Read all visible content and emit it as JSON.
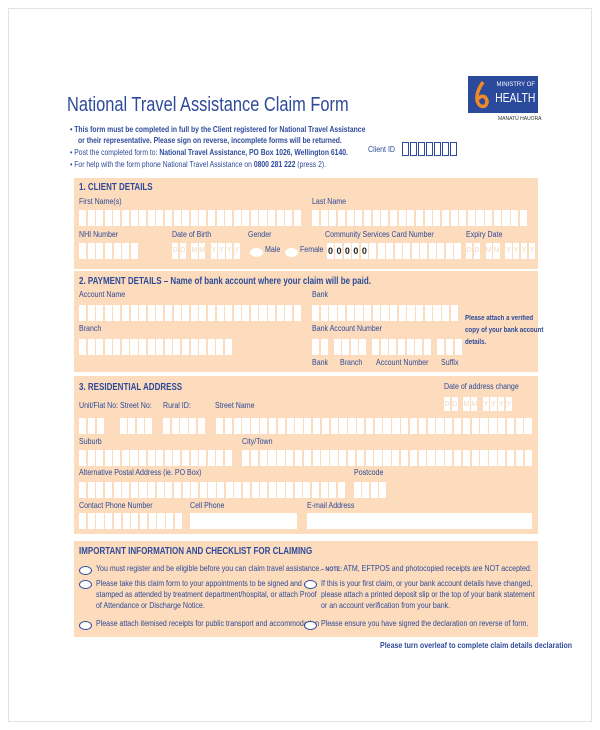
{
  "header": {
    "title": "National Travel Assistance Claim Form",
    "bullets": [
      "This form must be completed in full by the Client registered for National Travel Assistance",
      "or their representative. Please sign on reverse, incomplete forms will be returned."
    ],
    "post_prefix": "Post the completed form to: ",
    "post_address": "National Travel Assistance, PO Box 1026, Wellington 6140.",
    "help_prefix": "For help with the form phone National Travel Assistance on ",
    "help_phone": "0800 281 222",
    "help_suffix": " (press 2).",
    "client_id_label": "Client ID"
  },
  "logo": {
    "line1": "MINISTRY OF",
    "line2": "HEALTH",
    "tagline": "MANATŪ HAUORA",
    "brand_color": "#2b4a9c",
    "accent_color": "#f08a24"
  },
  "date_placeholder": [
    "D",
    "D",
    "M",
    "M",
    "Y",
    "Y",
    "Y",
    "Y"
  ],
  "csc_prefilled": [
    "0",
    "0",
    "0",
    "0",
    "0"
  ],
  "section1": {
    "title": "1. CLIENT DETAILS",
    "first_name": "First Name(s)",
    "last_name": "Last Name",
    "nhi": "NHI Number",
    "dob": "Date of Birth",
    "gender": "Gender",
    "male": "Male",
    "female": "Female",
    "csc": "Community Services Card Number",
    "expiry": "Expiry Date"
  },
  "section2": {
    "title": "2. PAYMENT DETAILS – Name of bank account where your claim will be paid.",
    "account_name": "Account Name",
    "bank": "Bank",
    "branch": "Branch",
    "bank_account_number": "Bank Account Number",
    "sub_bank": "Bank",
    "sub_branch": "Branch",
    "sub_account": "Account Number",
    "sub_suffix": "Suffix",
    "note": [
      "Please attach a verified",
      "copy of your bank account",
      "details."
    ]
  },
  "section3": {
    "title": "3. RESIDENTIAL ADDRESS",
    "date_change": "Date of address change",
    "unit": "Unit/Flat No:",
    "street_no": "Street No:",
    "rural": "Rural ID:",
    "street_name": "Street Name",
    "suburb": "Suburb",
    "city": "City/Town",
    "alt_postal": "Alternative Postal Address (ie. PO Box)",
    "postcode": "Postcode",
    "contact_phone": "Contact Phone Number",
    "cell": "Cell Phone",
    "email": "E-mail Address"
  },
  "section4": {
    "title": "IMPORTANT INFORMATION AND CHECKLIST FOR CLAIMING",
    "left": [
      [
        "You must register and be eligible before you can claim travel assistance."
      ],
      [
        "Please take this claim form to your appointments to be signed and",
        "stamped as attended by treatment department/hospital, or attach Proof",
        "of Attendance or Discharge Notice."
      ],
      [
        "Please attach itemised receipts for public transport and accommodation"
      ]
    ],
    "note_label": "– NOTE:",
    "note_text": " ATM, EFTPOS and photocopied receipts are NOT accepted.",
    "right": [
      [
        "If this is your first claim, or your bank account details have changed,",
        "please attach a printed deposit slip or the top of your bank statement",
        "or an account verification from your bank."
      ],
      [
        "Please ensure you have signed the declaration on reverse of form."
      ]
    ]
  },
  "footer": "Please turn overleaf to complete claim details declaration"
}
